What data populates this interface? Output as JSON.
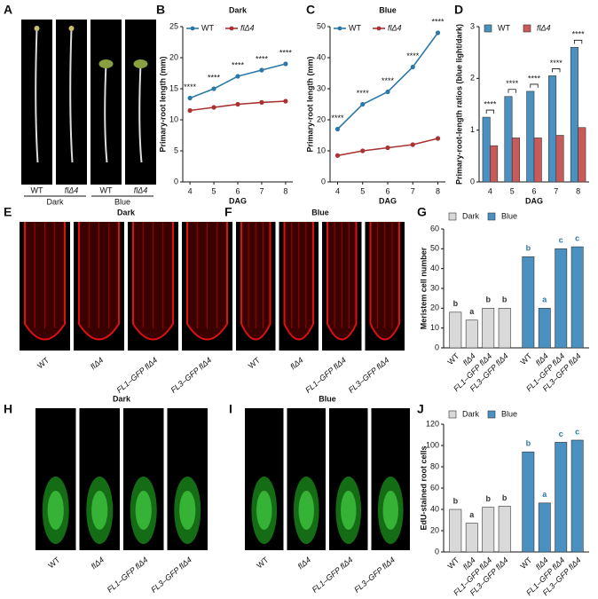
{
  "chart_data": [
    {
      "panel": "B",
      "type": "line",
      "title": "Dark",
      "xlabel": "DAG",
      "ylabel": "Primary-root length (mm)",
      "x": [
        4,
        5,
        6,
        7,
        8
      ],
      "xlim": [
        3.7,
        8.3
      ],
      "xticks": [
        4,
        5,
        6,
        7,
        8
      ],
      "ylim": [
        0,
        25
      ],
      "yticks": [
        0,
        5,
        10,
        15,
        20,
        25
      ],
      "legend": "top-left",
      "series": [
        {
          "name": "WT",
          "color": "#2b79a8",
          "values": [
            13.5,
            15,
            17,
            18,
            19
          ]
        },
        {
          "name": "flΔ4",
          "color": "#a83232",
          "values": [
            11.5,
            12,
            12.5,
            12.8,
            13
          ]
        }
      ],
      "significance": [
        "****",
        "****",
        "****",
        "****",
        "****"
      ]
    },
    {
      "panel": "C",
      "type": "line",
      "title": "Blue",
      "xlabel": "DAG",
      "ylabel": "Primary-root length (mm)",
      "x": [
        4,
        5,
        6,
        7,
        8
      ],
      "xlim": [
        3.7,
        8.3
      ],
      "xticks": [
        4,
        5,
        6,
        7,
        8
      ],
      "ylim": [
        0,
        50
      ],
      "yticks": [
        0,
        10,
        20,
        30,
        40,
        50
      ],
      "legend": "top-left",
      "series": [
        {
          "name": "WT",
          "color": "#2b79a8",
          "values": [
            17,
            25,
            29,
            37,
            48
          ]
        },
        {
          "name": "flΔ4",
          "color": "#a83232",
          "values": [
            8.5,
            10,
            11,
            12,
            14
          ]
        }
      ],
      "significance": [
        "****",
        "****",
        "****",
        "****",
        "****"
      ]
    },
    {
      "panel": "D",
      "type": "bar",
      "grouping": "category",
      "xlabel": "DAG",
      "ylabel": "Primary-root-length ratios (blue light/dark)",
      "categories": [
        4,
        5,
        6,
        7,
        8
      ],
      "ylim": [
        0,
        3
      ],
      "yticks": [
        0,
        1,
        2,
        3
      ],
      "legend": "top-left",
      "series": [
        {
          "name": "WT",
          "color": "#4a90c0",
          "values": [
            1.25,
            1.65,
            1.75,
            2.05,
            2.6
          ]
        },
        {
          "name": "flΔ4",
          "color": "#c85a5a",
          "values": [
            0.7,
            0.85,
            0.85,
            0.9,
            1.05
          ]
        }
      ],
      "significance": [
        "****",
        "****",
        "****",
        "****",
        "****"
      ]
    },
    {
      "panel": "G",
      "type": "bar",
      "grouping": "series",
      "ylabel": "Meristem cell number",
      "categories": [
        "WT",
        "flΔ4",
        "FL1–GFP flΔ4",
        "FL3–GFP flΔ4"
      ],
      "ylim": [
        0,
        60
      ],
      "yticks": [
        0,
        10,
        20,
        30,
        40,
        50,
        60
      ],
      "legend": "top-left",
      "series": [
        {
          "name": "Dark",
          "color": "#d9d9d9",
          "label_color": "#333333",
          "values": [
            18,
            14,
            20,
            20
          ],
          "letters": [
            "b",
            "a",
            "b",
            "b"
          ]
        },
        {
          "name": "Blue",
          "color": "#4a90c0",
          "label_color": "#2b79a8",
          "values": [
            46,
            20,
            50,
            51
          ],
          "letters": [
            "b",
            "a",
            "c",
            "c"
          ]
        }
      ]
    },
    {
      "panel": "J",
      "type": "bar",
      "grouping": "series",
      "ylabel": "EdU-stained root cells",
      "categories": [
        "WT",
        "flΔ4",
        "FL1–GFP flΔ4",
        "FL3–GFP flΔ4"
      ],
      "ylim": [
        0,
        120
      ],
      "yticks": [
        0,
        20,
        40,
        60,
        80,
        100,
        120
      ],
      "legend": "top-left",
      "series": [
        {
          "name": "Dark",
          "color": "#d9d9d9",
          "label_color": "#333333",
          "values": [
            40,
            27,
            42,
            43
          ],
          "letters": [
            "b",
            "a",
            "b",
            "b"
          ]
        },
        {
          "name": "Blue",
          "color": "#4a90c0",
          "label_color": "#2b79a8",
          "values": [
            94,
            46,
            103,
            105
          ],
          "letters": [
            "b",
            "a",
            "c",
            "c"
          ]
        }
      ]
    }
  ],
  "image_panels": [
    {
      "panel": "A",
      "labels": [
        "WT",
        "flΔ4",
        "WT",
        "flΔ4"
      ],
      "groups": [
        "Dark",
        "Blue"
      ]
    },
    {
      "panel": "E",
      "title": "Dark",
      "labels": [
        "WT",
        "flΔ4",
        "FL1–GFP flΔ4",
        "FL3–GFP flΔ4"
      ]
    },
    {
      "panel": "F",
      "title": "Blue",
      "labels": [
        "WT",
        "flΔ4",
        "FL1–GFP flΔ4",
        "FL3–GFP flΔ4"
      ]
    },
    {
      "panel": "H",
      "title": "Dark",
      "labels": [
        "WT",
        "flΔ4",
        "FL1–GFP flΔ4",
        "FL3–GFP flΔ4"
      ]
    },
    {
      "panel": "I",
      "title": "Blue",
      "labels": [
        "WT",
        "flΔ4",
        "FL1–GFP flΔ4",
        "FL3–GFP flΔ4"
      ]
    }
  ]
}
